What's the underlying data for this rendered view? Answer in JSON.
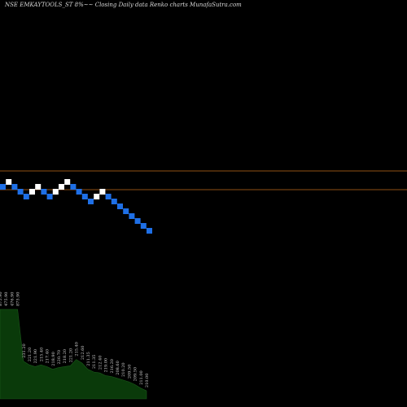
{
  "title": "NSE EMKAYTOOLS_ST 8%~~  Closing Daily data  Renko  charts MunafaSutra.com",
  "colors": {
    "background": "#000000",
    "up_brick": "#ffffff",
    "down_brick": "#1e6fe6",
    "support_line": "#c06a1a",
    "volume_area": "#0a3a0a"
  },
  "chart_data": {
    "type": "renko",
    "title": "NSE EMKAYTOOLS_ST 8%~~  Closing Daily data  Renko  charts MunafaSutra.com",
    "box_levels": [
      100,
      92,
      85,
      78,
      72,
      66,
      61,
      56,
      51.5,
      47,
      43.5,
      40,
      37
    ],
    "reference_lines": [
      101,
      89
    ],
    "bricks": [
      {
        "dir": "down",
        "level": 3
      },
      {
        "dir": "up",
        "level": 4
      },
      {
        "dir": "down",
        "level": 3
      },
      {
        "dir": "down",
        "level": 2
      },
      {
        "dir": "down",
        "level": 1
      },
      {
        "dir": "up",
        "level": 2
      },
      {
        "dir": "up",
        "level": 3
      },
      {
        "dir": "down",
        "level": 2
      },
      {
        "dir": "down",
        "level": 1
      },
      {
        "dir": "up",
        "level": 2
      },
      {
        "dir": "up",
        "level": 3
      },
      {
        "dir": "up",
        "level": 4
      },
      {
        "dir": "down",
        "level": 3
      },
      {
        "dir": "down",
        "level": 2
      },
      {
        "dir": "down",
        "level": 1
      },
      {
        "dir": "down",
        "level": 0
      },
      {
        "dir": "up",
        "level": 1
      },
      {
        "dir": "up",
        "level": 2
      },
      {
        "dir": "down",
        "level": 1
      },
      {
        "dir": "down",
        "level": 0
      },
      {
        "dir": "down",
        "level": -1
      },
      {
        "dir": "down",
        "level": -2
      },
      {
        "dir": "down",
        "level": -3
      },
      {
        "dir": "down",
        "level": -4
      },
      {
        "dir": "down",
        "level": -5
      },
      {
        "dir": "down",
        "level": -6
      }
    ],
    "volume_labels": [
      "875.90",
      "475.90",
      "476.90",
      "875.90",
      "231.20",
      "221.20",
      "221.90",
      "215.40",
      "217.40",
      "218.90",
      "220.70",
      "218.20",
      "221.20",
      "215.40",
      "212.60",
      "211.35",
      "211.35",
      "212.40",
      "219.00",
      "216.20",
      "208.60",
      "210.20",
      "209.50",
      "209.50",
      "211.00",
      "210.00"
    ],
    "volume_values": [
      100,
      100,
      100,
      100,
      42,
      38,
      36,
      38,
      36,
      33,
      35,
      36,
      37,
      44,
      40,
      33,
      30,
      29,
      26,
      25,
      23,
      21,
      19,
      16,
      12,
      9
    ]
  }
}
